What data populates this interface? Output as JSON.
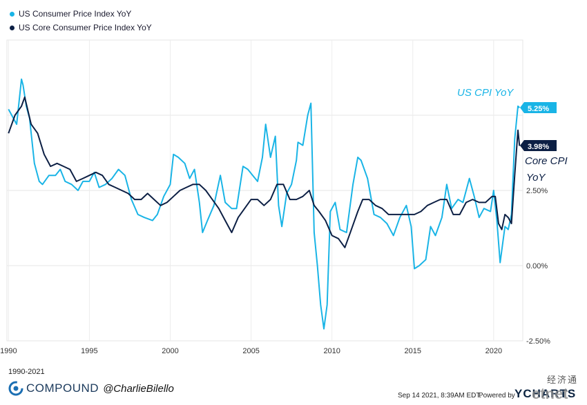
{
  "legend": {
    "items": [
      {
        "label": "US Consumer Price Index YoY",
        "color": "#19b4e6"
      },
      {
        "label": "US Core Consumer Price Index YoY",
        "color": "#0c1f44"
      }
    ]
  },
  "annotations": {
    "cpi_label": "US CPI YoY",
    "core_label_line1": "Core CPI",
    "core_label_line2": "YoY",
    "cpi_value": "5.25%",
    "core_value": "3.98%"
  },
  "footer": {
    "range": "1990-2021",
    "brand": "COMPOUND",
    "handle": "@CharlieBilello",
    "timestamp": "Sep 14 2021, 8:39AM EDT.",
    "powered": "Powered by",
    "ycharts": "YCHARTS",
    "watermark_cn": "经济通",
    "watermark_en": "etnet"
  },
  "chart_data": {
    "type": "line",
    "xlabel": "",
    "ylabel": "",
    "xlim": [
      1989.9,
      2021.8
    ],
    "ylim": [
      -2.5,
      7.5
    ],
    "x_ticks": [
      1990,
      1995,
      2000,
      2005,
      2010,
      2015,
      2020
    ],
    "y_ticks": [
      {
        "value": 2.5,
        "label": "2.50%"
      },
      {
        "value": 0,
        "label": "0.00%"
      },
      {
        "value": -2.5,
        "label": "-2.50%"
      }
    ],
    "grid": true,
    "series": [
      {
        "name": "US Consumer Price Index YoY",
        "color": "#19b4e6",
        "x": [
          1990.0,
          1990.2,
          1990.5,
          1990.8,
          1990.9,
          1991.1,
          1991.3,
          1991.6,
          1991.9,
          1992.1,
          1992.5,
          1992.9,
          1993.2,
          1993.5,
          1993.9,
          1994.3,
          1994.6,
          1995.0,
          1995.3,
          1995.6,
          1996.0,
          1996.4,
          1996.8,
          1997.2,
          1997.6,
          1998.0,
          1998.4,
          1998.9,
          1999.2,
          1999.6,
          2000.0,
          2000.2,
          2000.5,
          2000.9,
          2001.2,
          2001.5,
          2001.8,
          2002.0,
          2002.3,
          2002.7,
          2003.1,
          2003.4,
          2003.8,
          2004.1,
          2004.5,
          2004.8,
          2005.1,
          2005.4,
          2005.7,
          2005.9,
          2006.2,
          2006.5,
          2006.7,
          2006.9,
          2007.2,
          2007.5,
          2007.8,
          2007.9,
          2008.2,
          2008.5,
          2008.7,
          2008.9,
          2009.1,
          2009.3,
          2009.5,
          2009.7,
          2009.9,
          2010.2,
          2010.5,
          2010.9,
          2011.3,
          2011.6,
          2011.8,
          2012.2,
          2012.6,
          2013.0,
          2013.4,
          2013.8,
          2014.2,
          2014.6,
          2014.9,
          2015.1,
          2015.4,
          2015.8,
          2016.1,
          2016.4,
          2016.8,
          2017.1,
          2017.4,
          2017.8,
          2018.1,
          2018.5,
          2018.8,
          2019.1,
          2019.4,
          2019.8,
          2020.0,
          2020.2,
          2020.4,
          2020.7,
          2020.9,
          2021.1,
          2021.3,
          2021.5,
          2021.6
        ],
        "y": [
          5.2,
          5.0,
          4.7,
          6.2,
          6.0,
          5.3,
          4.9,
          3.4,
          2.8,
          2.7,
          3.0,
          3.0,
          3.2,
          2.8,
          2.7,
          2.5,
          2.8,
          2.8,
          3.1,
          2.6,
          2.7,
          2.9,
          3.2,
          3.0,
          2.2,
          1.7,
          1.6,
          1.5,
          1.7,
          2.3,
          2.7,
          3.7,
          3.6,
          3.4,
          2.9,
          3.2,
          2.1,
          1.1,
          1.5,
          2.0,
          3.0,
          2.1,
          1.9,
          1.9,
          3.3,
          3.2,
          3.0,
          2.8,
          3.6,
          4.7,
          3.6,
          4.3,
          2.0,
          1.3,
          2.4,
          2.7,
          3.5,
          4.1,
          4.0,
          5.0,
          5.4,
          1.1,
          0.0,
          -1.3,
          -2.1,
          -1.3,
          1.8,
          2.1,
          1.2,
          1.1,
          2.7,
          3.6,
          3.5,
          2.9,
          1.7,
          1.6,
          1.4,
          1.0,
          1.6,
          2.0,
          1.3,
          -0.1,
          0.0,
          0.2,
          1.3,
          1.0,
          1.6,
          2.7,
          1.9,
          2.2,
          2.1,
          2.9,
          2.3,
          1.6,
          1.9,
          1.8,
          2.5,
          1.5,
          0.1,
          1.3,
          1.2,
          1.7,
          4.2,
          5.3,
          5.25
        ]
      },
      {
        "name": "US Core Consumer Price Index YoY",
        "color": "#0c1f44",
        "x": [
          1990.0,
          1990.4,
          1990.8,
          1991.0,
          1991.4,
          1991.8,
          1992.2,
          1992.6,
          1993.0,
          1993.4,
          1993.8,
          1994.2,
          1994.6,
          1995.0,
          1995.4,
          1995.8,
          1996.2,
          1996.6,
          1997.0,
          1997.4,
          1997.8,
          1998.2,
          1998.6,
          1999.0,
          1999.4,
          1999.8,
          2000.2,
          2000.6,
          2001.0,
          2001.4,
          2001.8,
          2002.2,
          2002.6,
          2003.0,
          2003.4,
          2003.8,
          2004.2,
          2004.6,
          2005.0,
          2005.4,
          2005.8,
          2006.2,
          2006.6,
          2007.0,
          2007.4,
          2007.8,
          2008.2,
          2008.6,
          2008.9,
          2009.2,
          2009.6,
          2010.0,
          2010.4,
          2010.8,
          2011.2,
          2011.6,
          2011.9,
          2012.3,
          2012.7,
          2013.1,
          2013.5,
          2013.9,
          2014.3,
          2014.7,
          2015.1,
          2015.5,
          2015.9,
          2016.3,
          2016.7,
          2017.1,
          2017.5,
          2017.9,
          2018.3,
          2018.7,
          2019.1,
          2019.5,
          2019.9,
          2020.1,
          2020.3,
          2020.5,
          2020.7,
          2020.9,
          2021.1,
          2021.3,
          2021.5,
          2021.6
        ],
        "y": [
          4.4,
          5.0,
          5.3,
          5.6,
          4.7,
          4.4,
          3.7,
          3.3,
          3.4,
          3.3,
          3.2,
          2.8,
          2.9,
          3.0,
          3.1,
          3.0,
          2.7,
          2.6,
          2.5,
          2.4,
          2.2,
          2.2,
          2.4,
          2.2,
          2.0,
          2.1,
          2.3,
          2.5,
          2.6,
          2.7,
          2.7,
          2.5,
          2.2,
          1.9,
          1.5,
          1.1,
          1.6,
          1.9,
          2.2,
          2.2,
          2.0,
          2.2,
          2.7,
          2.7,
          2.2,
          2.2,
          2.3,
          2.5,
          2.0,
          1.8,
          1.5,
          1.0,
          0.9,
          0.6,
          1.2,
          1.8,
          2.2,
          2.2,
          2.0,
          1.9,
          1.7,
          1.7,
          1.7,
          1.7,
          1.7,
          1.8,
          2.0,
          2.1,
          2.2,
          2.2,
          1.7,
          1.7,
          2.1,
          2.2,
          2.1,
          2.1,
          2.3,
          2.3,
          1.4,
          1.2,
          1.7,
          1.6,
          1.4,
          3.0,
          4.5,
          3.98
        ]
      }
    ]
  }
}
